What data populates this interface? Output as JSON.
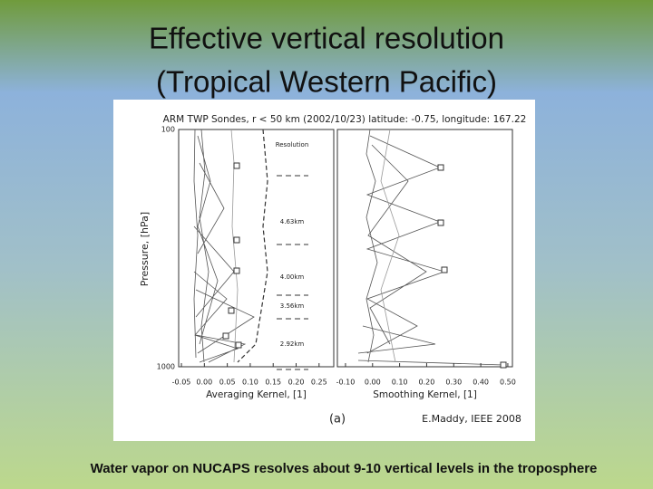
{
  "slide": {
    "title": [
      "Effective vertical resolution",
      "(Tropical Western Pacific)"
    ],
    "caption": "Water vapor on NUCAPS resolves about 9-10 vertical levels in the troposphere"
  },
  "figure": {
    "title": "ARM TWP Sondes, r < 50 km (2002/10/23) latitude: -0.75, longitude: 167.22",
    "ylabel": "Pressure, [hPa]",
    "log_y": true,
    "ylim": [
      100,
      1000
    ],
    "yticks": [
      100,
      1000
    ],
    "panels": [
      {
        "xlabel": "Averaging Kernel, [1]",
        "xlim": [
          -0.056,
          0.282
        ],
        "xticks": [
          -0.05,
          {
            "value": 0,
            "label": "0.00"
          },
          0.05,
          {
            "value": 0.1,
            "label": "0.10"
          },
          0.15,
          {
            "value": 0.2,
            "label": "0.20"
          },
          0.25
        ]
      },
      {
        "xlabel": "Smoothing Kernel, [1]",
        "xlim": [
          -0.13,
          0.517
        ],
        "xticks": [
          {
            "value": -0.1,
            "label": "-0.10"
          },
          {
            "value": 0,
            "label": "0.00"
          },
          {
            "value": 0.1,
            "label": "0.10"
          },
          {
            "value": 0.2,
            "label": "0.20"
          },
          {
            "value": 0.3,
            "label": "0.30"
          },
          {
            "value": 0.4,
            "label": "0.40"
          },
          {
            "value": 0.5,
            "label": "0.50"
          }
        ]
      }
    ],
    "legend_title": "Resolution",
    "resolutions": [
      "4.63km",
      "4.00km",
      "3.56km",
      "2.92km"
    ],
    "panel_label": "(a)",
    "credit": "E.Maddy, IEEE 2008"
  }
}
